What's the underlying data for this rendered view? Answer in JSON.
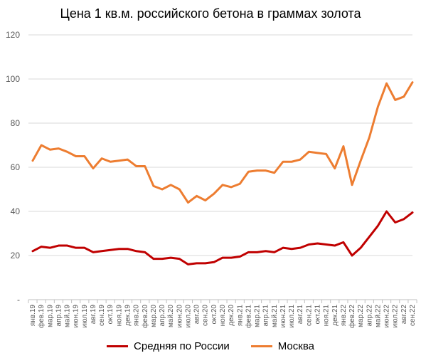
{
  "chart_data": {
    "type": "line",
    "title": "Цена 1 кв.м. российского бетона в граммах золота",
    "xlabel": "",
    "ylabel": "",
    "ylim": [
      0,
      120
    ],
    "y_ticks": [
      "-",
      "20",
      "40",
      "60",
      "80",
      "100",
      "120"
    ],
    "grid": true,
    "legend_position": "bottom",
    "categories": [
      "янв.19",
      "фев.19",
      "мар.19",
      "апр.19",
      "май.19",
      "июн.19",
      "июл.19",
      "авг.19",
      "сен.19",
      "окт.19",
      "ноя.19",
      "дек.19",
      "янв.20",
      "фев.20",
      "мар.20",
      "апр.20",
      "май.20",
      "июн.20",
      "июл.20",
      "авг.20",
      "сен.20",
      "окт.20",
      "ноя.20",
      "дек.20",
      "янв.21",
      "фев.21",
      "мар.21",
      "апр.21",
      "май.21",
      "июн.21",
      "июл.21",
      "авг.21",
      "сен.21",
      "окт.21",
      "ноя.21",
      "дек.21",
      "янв.22",
      "фев.22",
      "мар.22",
      "апр.22",
      "май.22",
      "июн.22",
      "июл.22",
      "авг.22",
      "сен.22"
    ],
    "series": [
      {
        "name": "Средняя по России",
        "color": "#C00000",
        "values": [
          22,
          24,
          23.5,
          24.5,
          24.5,
          23.5,
          23.5,
          21.5,
          22,
          22.5,
          23,
          23,
          22,
          21.5,
          18.5,
          18.5,
          19,
          18.5,
          16,
          16.5,
          16.5,
          17,
          19,
          19,
          19.5,
          21.5,
          21.5,
          22,
          21.5,
          23.5,
          23,
          23.5,
          25,
          25.5,
          25,
          24.5,
          26,
          20,
          23.5,
          28.5,
          33.5,
          40,
          35,
          36.5,
          39.5
        ]
      },
      {
        "name": "Москва",
        "color": "#ED7D31",
        "values": [
          63,
          70,
          68,
          68.5,
          67,
          65,
          65,
          59.5,
          64,
          62.5,
          63,
          63.5,
          60.5,
          60.5,
          51.5,
          50,
          52,
          50,
          44,
          47,
          45,
          48,
          52,
          51,
          52.5,
          58,
          58.5,
          58.5,
          57.5,
          62.5,
          62.5,
          63.5,
          67,
          66.5,
          66,
          59.5,
          69.5,
          52,
          63,
          73.5,
          87.5,
          98,
          90.5,
          92,
          98.5
        ]
      }
    ]
  }
}
